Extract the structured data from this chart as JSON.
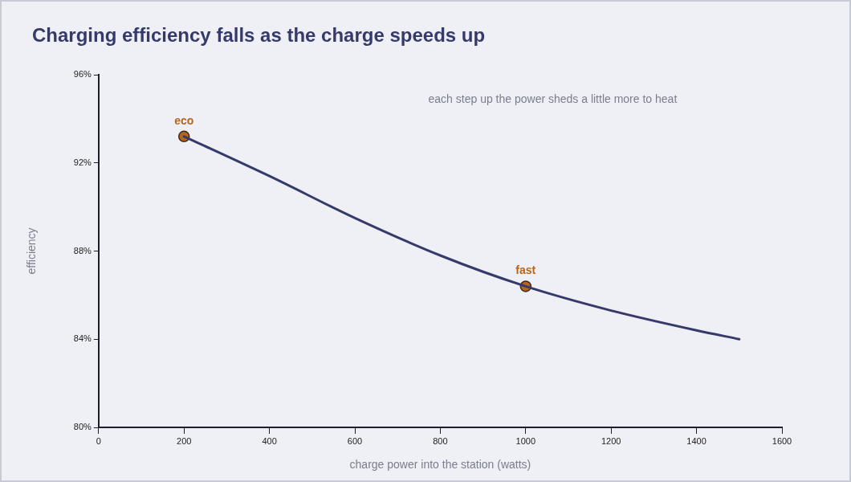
{
  "chart_data": {
    "type": "line",
    "title": "Charging efficiency falls as the charge speeds up",
    "xlabel": "charge power into the station (watts)",
    "ylabel": "efficiency",
    "xlim": [
      0,
      1600
    ],
    "xticks": [
      0,
      200,
      400,
      600,
      800,
      1000,
      1200,
      1400,
      1600
    ],
    "ylim": [
      80,
      96
    ],
    "yticks": [
      {
        "value": 80,
        "label": "80%"
      },
      {
        "value": 84,
        "label": "84%"
      },
      {
        "value": 88,
        "label": "88%"
      },
      {
        "value": 92,
        "label": "92%"
      },
      {
        "value": 96,
        "label": "96%"
      }
    ],
    "grid": false,
    "legend": false,
    "line_style": "solid",
    "series": [
      {
        "type": "line",
        "color": "#363a6b",
        "marker": "none",
        "x": [
          200,
          400,
          600,
          800,
          1000,
          1200,
          1400,
          1500
        ],
        "values": [
          93.2,
          91.4,
          89.5,
          87.8,
          86.4,
          85.3,
          84.4,
          84.0
        ]
      },
      {
        "type": "scatter",
        "color": "#b5651d",
        "marker": "circle",
        "x": [
          200,
          1000
        ],
        "values": [
          93.2,
          86.4
        ]
      }
    ],
    "annotations": [
      {
        "text": "eco",
        "x": 200,
        "y": 93.2
      },
      {
        "text": "fast",
        "x": 1000,
        "y": 86.4
      },
      "each step up the power sheds a little more to heat"
    ]
  }
}
